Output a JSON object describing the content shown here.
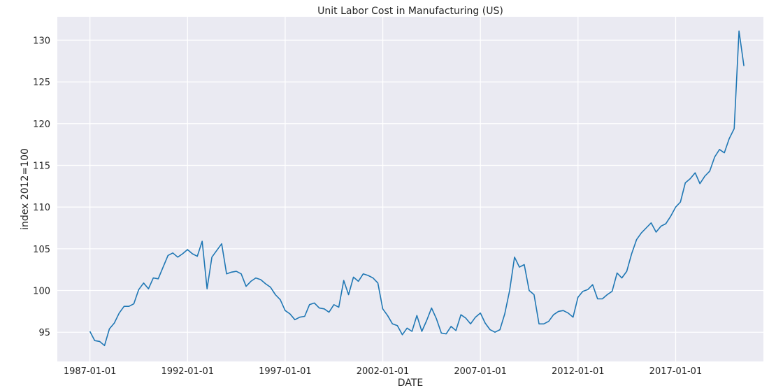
{
  "chart_data": {
    "type": "line",
    "title": "Unit Labor Cost in Manufacturing (US)",
    "xlabel": "DATE",
    "ylabel": "index 2012=100",
    "x_ticks": [
      "1987-01-01",
      "1992-01-01",
      "1997-01-01",
      "2002-01-01",
      "2007-01-01",
      "2012-01-01",
      "2017-01-01"
    ],
    "y_ticks": [
      95,
      100,
      105,
      110,
      115,
      120,
      125,
      130
    ],
    "xlim": [
      "1985-05-01",
      "2021-07-01"
    ],
    "ylim": [
      91.5,
      132.8
    ],
    "grid": true,
    "background": "#eaeaf2",
    "line_color": "#1f77b4",
    "series": [
      {
        "x": [
          "1987-01-01",
          "1987-04-01",
          "1987-07-01",
          "1987-10-01",
          "1988-01-01",
          "1988-04-01",
          "1988-07-01",
          "1988-10-01",
          "1989-01-01",
          "1989-04-01",
          "1989-07-01",
          "1989-10-01",
          "1990-01-01",
          "1990-04-01",
          "1990-07-01",
          "1990-10-01",
          "1991-01-01",
          "1991-04-01",
          "1991-07-01",
          "1991-10-01",
          "1992-01-01",
          "1992-04-01",
          "1992-07-01",
          "1992-10-01",
          "1993-01-01",
          "1993-04-01",
          "1993-07-01",
          "1993-10-01",
          "1994-01-01",
          "1994-04-01",
          "1994-07-01",
          "1994-10-01",
          "1995-01-01",
          "1995-04-01",
          "1995-07-01",
          "1995-10-01",
          "1996-01-01",
          "1996-04-01",
          "1996-07-01",
          "1996-10-01",
          "1997-01-01",
          "1997-04-01",
          "1997-07-01",
          "1997-10-01",
          "1998-01-01",
          "1998-04-01",
          "1998-07-01",
          "1998-10-01",
          "1999-01-01",
          "1999-04-01",
          "1999-07-01",
          "1999-10-01",
          "2000-01-01",
          "2000-04-01",
          "2000-07-01",
          "2000-10-01",
          "2001-01-01",
          "2001-04-01",
          "2001-07-01",
          "2001-10-01",
          "2002-01-01",
          "2002-04-01",
          "2002-07-01",
          "2002-10-01",
          "2003-01-01",
          "2003-04-01",
          "2003-07-01",
          "2003-10-01",
          "2004-01-01",
          "2004-04-01",
          "2004-07-01",
          "2004-10-01",
          "2005-01-01",
          "2005-04-01",
          "2005-07-01",
          "2005-10-01",
          "2006-01-01",
          "2006-04-01",
          "2006-07-01",
          "2006-10-01",
          "2007-01-01",
          "2007-04-01",
          "2007-07-01",
          "2007-10-01",
          "2008-01-01",
          "2008-04-01",
          "2008-07-01",
          "2008-10-01",
          "2009-01-01",
          "2009-04-01",
          "2009-07-01",
          "2009-10-01",
          "2010-01-01",
          "2010-04-01",
          "2010-07-01",
          "2010-10-01",
          "2011-01-01",
          "2011-04-01",
          "2011-07-01",
          "2011-10-01",
          "2012-01-01",
          "2012-04-01",
          "2012-07-01",
          "2012-10-01",
          "2013-01-01",
          "2013-04-01",
          "2013-07-01",
          "2013-10-01",
          "2014-01-01",
          "2014-04-01",
          "2014-07-01",
          "2014-10-01",
          "2015-01-01",
          "2015-04-01",
          "2015-07-01",
          "2015-10-01",
          "2016-01-01",
          "2016-04-01",
          "2016-07-01",
          "2016-10-01",
          "2017-01-01",
          "2017-04-01",
          "2017-07-01",
          "2017-10-01",
          "2018-01-01",
          "2018-04-01",
          "2018-07-01",
          "2018-10-01",
          "2019-01-01",
          "2019-04-01",
          "2019-07-01",
          "2019-10-01",
          "2020-01-01",
          "2020-04-01",
          "2020-07-01"
        ],
        "values": [
          95.1,
          94.0,
          93.9,
          93.4,
          95.4,
          96.1,
          97.3,
          98.1,
          98.1,
          98.4,
          100.1,
          100.9,
          100.2,
          101.5,
          101.4,
          102.8,
          104.2,
          104.5,
          104.0,
          104.4,
          104.9,
          104.4,
          104.1,
          105.9,
          100.2,
          104.0,
          104.8,
          105.6,
          102.0,
          102.2,
          102.3,
          102.0,
          100.5,
          101.1,
          101.5,
          101.3,
          100.8,
          100.4,
          99.5,
          98.9,
          97.6,
          97.2,
          96.5,
          96.8,
          96.9,
          98.3,
          98.5,
          97.9,
          97.8,
          97.4,
          98.3,
          98.0,
          101.2,
          99.5,
          101.6,
          101.1,
          102.0,
          101.8,
          101.5,
          100.9,
          97.8,
          97.0,
          96.0,
          95.8,
          94.7,
          95.5,
          95.1,
          97.0,
          95.1,
          96.4,
          97.9,
          96.6,
          94.9,
          94.8,
          95.7,
          95.2,
          97.1,
          96.7,
          96.0,
          96.8,
          97.3,
          96.1,
          95.3,
          95.0,
          95.3,
          97.2,
          100.0,
          104.0,
          102.8,
          103.1,
          100.0,
          99.5,
          96.0,
          96.0,
          96.3,
          97.1,
          97.5,
          97.6,
          97.3,
          96.8,
          99.2,
          99.9,
          100.1,
          100.7,
          99.0,
          99.0,
          99.5,
          99.9,
          102.1,
          101.5,
          102.3,
          104.4,
          106.1,
          106.9,
          107.5,
          108.1,
          107.0,
          107.7,
          108.0,
          108.9,
          110.0,
          110.6,
          112.9,
          113.4,
          114.1,
          112.8,
          113.7,
          114.3,
          116.0,
          116.9,
          116.5,
          118.2,
          119.4,
          131.1,
          126.9
        ]
      }
    ]
  }
}
